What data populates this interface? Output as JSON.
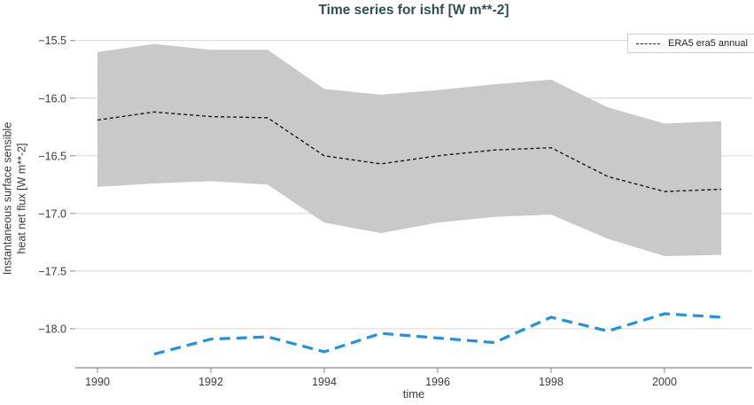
{
  "colors": {
    "title": "#2f4f4f",
    "tick_labels": "#3a3a3a",
    "grid": "#dcdcdc",
    "axis_spine": "#888888",
    "background": "#ffffff",
    "band": "#c9c9c9",
    "era5_line": "#1a1a1a",
    "secondary_line": "#1f93e0"
  },
  "legend": {
    "entries": [
      {
        "label": "ERA5 era5 annual",
        "line_color": "#1a1a1a",
        "line_style": "dashed"
      }
    ],
    "position": "top-right"
  },
  "chart_data": {
    "type": "line",
    "title": "Time series for ishf [W m**-2]",
    "xlabel": "time",
    "ylabel": "Instantaneous surface sensible\nheat net flux [W m**-2]",
    "xticks": [
      1990,
      1992,
      1994,
      1996,
      1998,
      2000
    ],
    "yticks": [
      -15.5,
      -16.0,
      -16.5,
      -17.0,
      -17.5,
      -18.0
    ],
    "xlim": [
      1989.6,
      2001.55
    ],
    "ylim": [
      -18.35,
      -15.4
    ],
    "grid": "horizontal",
    "legend_position": "top-right",
    "series": [
      {
        "name": "ERA5 era5 annual",
        "style": "dashed",
        "color": "#1a1a1a",
        "x": [
          1990,
          1991,
          1992,
          1993,
          1994,
          1995,
          1996,
          1997,
          1998,
          1999,
          2000,
          2001
        ],
        "values": [
          -16.19,
          -16.12,
          -16.16,
          -16.17,
          -16.5,
          -16.57,
          -16.5,
          -16.45,
          -16.43,
          -16.68,
          -16.81,
          -16.79
        ]
      },
      {
        "name": "",
        "style": "dashed",
        "color": "#1f93e0",
        "x": [
          1991,
          1992,
          1993,
          1994,
          1995,
          1996,
          1997,
          1998,
          1999,
          2000,
          2001
        ],
        "values": [
          -18.22,
          -18.09,
          -18.07,
          -18.2,
          -18.04,
          -18.08,
          -18.12,
          -17.9,
          -18.02,
          -17.87,
          -17.9
        ]
      }
    ],
    "band": {
      "series": "ERA5 era5 annual",
      "color": "#c9c9c9",
      "x": [
        1990,
        1991,
        1992,
        1993,
        1994,
        1995,
        1996,
        1997,
        1998,
        1999,
        2000,
        2001
      ],
      "upper": [
        -15.6,
        -15.53,
        -15.58,
        -15.58,
        -15.92,
        -15.97,
        -15.93,
        -15.88,
        -15.84,
        -16.08,
        -16.22,
        -16.2
      ],
      "lower": [
        -16.77,
        -16.74,
        -16.72,
        -16.75,
        -17.08,
        -17.17,
        -17.08,
        -17.03,
        -17.01,
        -17.22,
        -17.37,
        -17.36
      ]
    }
  }
}
